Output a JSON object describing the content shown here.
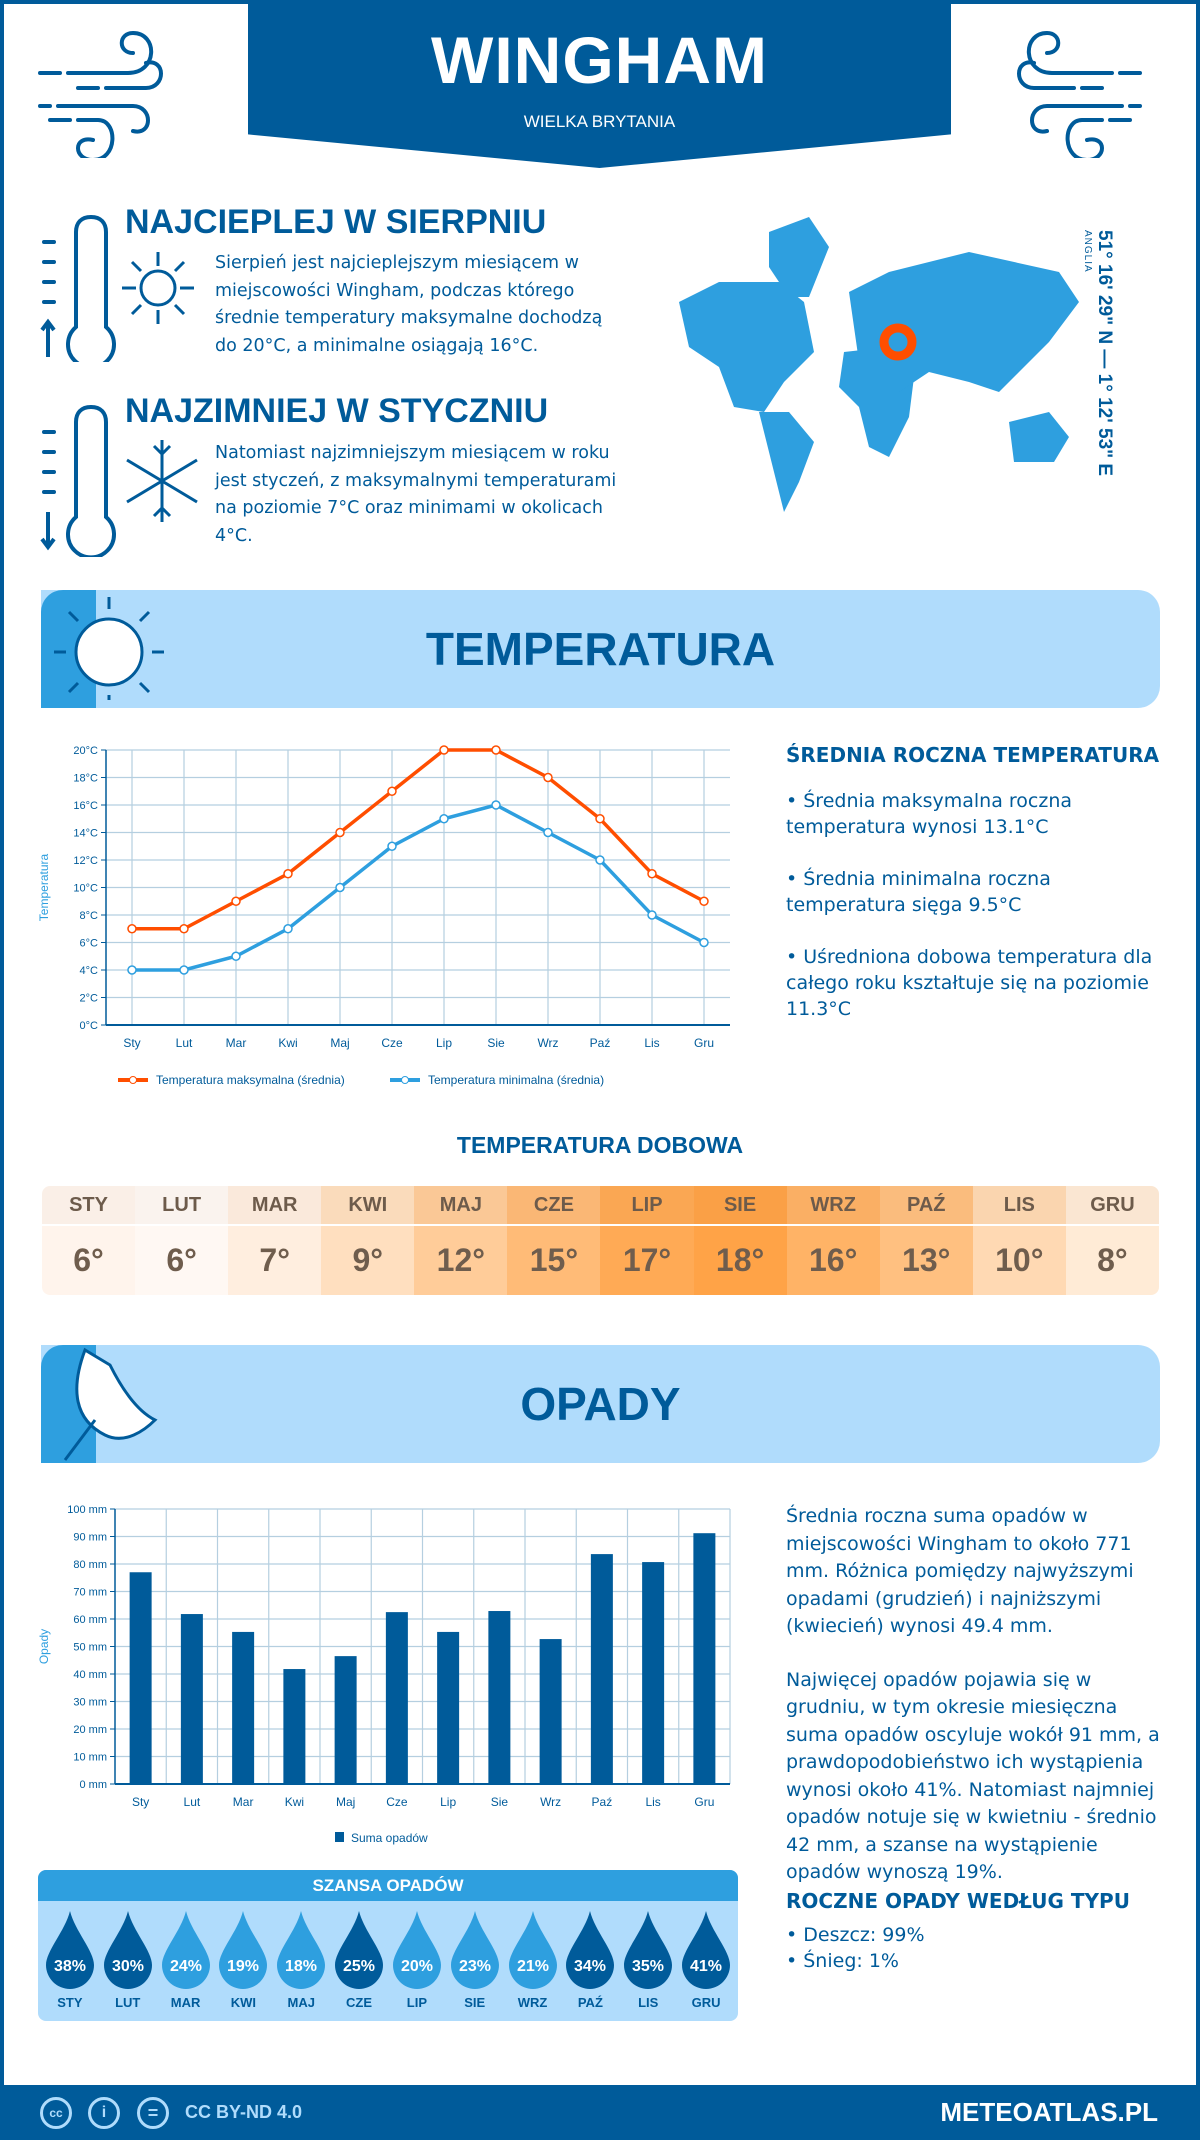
{
  "header": {
    "title": "WINGHAM",
    "subtitle": "WIELKA BRYTANIA"
  },
  "warmest": {
    "title": "NAJCIEPLEJ W SIERPNIU",
    "text": "Sierpień jest najcieplejszym miesiącem w miejscowości Wingham, podczas którego średnie temperatury maksymalne dochodzą do 20°C, a minimalne osiągają 16°C."
  },
  "coldest": {
    "title": "NAJZIMNIEJ W STYCZNIU",
    "text": "Natomiast najzimniejszym miesiącem w roku jest styczeń, z maksymalnymi temperaturami na poziomie 7°C oraz minimami w okolicach 4°C."
  },
  "location": {
    "coordinates": "51° 16' 29\" N — 1° 12' 53\" E",
    "region": "ANGLIA",
    "marker_color": "#ff4e00"
  },
  "temperature_section": {
    "title": "TEMPERATURA"
  },
  "temp_stats": {
    "title": "ŚREDNIA ROCZNA TEMPERATURA",
    "items": [
      "• Średnia maksymalna roczna temperatura wynosi 13.1°C",
      "• Średnia minimalna roczna temperatura sięga 9.5°C",
      "• Uśredniona dobowa temperatura dla całego roku kształtuje się na poziomie 11.3°C"
    ]
  },
  "daily": {
    "title": "TEMPERATURA DOBOWA",
    "months": [
      "STY",
      "LUT",
      "MAR",
      "KWI",
      "MAJ",
      "CZE",
      "LIP",
      "SIE",
      "WRZ",
      "PAŹ",
      "LIS",
      "GRU"
    ],
    "values": [
      "6°",
      "6°",
      "7°",
      "9°",
      "12°",
      "15°",
      "17°",
      "18°",
      "16°",
      "13°",
      "10°",
      "8°"
    ],
    "colors": [
      "#fff4ec",
      "#fff8f3",
      "#ffeedf",
      "#ffdfbf",
      "#ffcc99",
      "#ffbb77",
      "#ffaa55",
      "#ffa347",
      "#ffb366",
      "#ffc080",
      "#ffd9b3",
      "#ffebd6"
    ]
  },
  "precip_section": {
    "title": "OPADY"
  },
  "precip_text": [
    "Średnia roczna suma opadów w miejscowości Wingham to około 771 mm. Różnica pomiędzy najwyższymi opadami (grudzień) i najniższymi (kwiecień) wynosi 49.4 mm.",
    "Najwięcej opadów pojawia się w grudniu, w tym okresie miesięczna suma opadów oscyluje wokół 91 mm, a prawdopodobieństwo ich wystąpienia wynosi około 41%. Natomiast najmniej opadów notuje się w kwietniu - średnio 42 mm, a szanse na wystąpienie opadów wynoszą 19%."
  ],
  "chance": {
    "title": "SZANSA OPADÓW",
    "months": [
      "STY",
      "LUT",
      "MAR",
      "KWI",
      "MAJ",
      "CZE",
      "LIP",
      "SIE",
      "WRZ",
      "PAŹ",
      "LIS",
      "GRU"
    ],
    "values": [
      "38%",
      "30%",
      "24%",
      "19%",
      "18%",
      "25%",
      "20%",
      "23%",
      "21%",
      "34%",
      "35%",
      "41%"
    ],
    "dark_color": "#005b9a",
    "light_color": "#2e9fdf"
  },
  "types": {
    "title": "ROCZNE OPADY WEDŁUG TYPU",
    "items": [
      "• Deszcz: 99%",
      "• Śnieg: 1%"
    ]
  },
  "footer": {
    "license": "CC BY-ND 4.0",
    "brand": "METEOATLAS.PL",
    "cc_icon": "cc",
    "by_icon": "i",
    "nd_icon": "="
  },
  "chart_data": [
    {
      "type": "line",
      "categories": [
        "Sty",
        "Lut",
        "Mar",
        "Kwi",
        "Maj",
        "Cze",
        "Lip",
        "Sie",
        "Wrz",
        "Paź",
        "Lis",
        "Gru"
      ],
      "ylabel": "Temperatura",
      "ylim": [
        0,
        20
      ],
      "yticks": [
        "0°C",
        "2°C",
        "4°C",
        "6°C",
        "8°C",
        "10°C",
        "12°C",
        "14°C",
        "16°C",
        "18°C",
        "20°C"
      ],
      "grid": true,
      "legend": "bottom",
      "series": [
        {
          "name": "Temperatura maksymalna (średnia)",
          "color": "#ff4e00",
          "values": [
            7,
            7,
            9,
            11,
            14,
            17,
            20,
            20,
            18,
            15,
            11,
            9
          ]
        },
        {
          "name": "Temperatura minimalna (średnia)",
          "color": "#2e9fdf",
          "values": [
            4,
            4,
            5,
            7,
            10,
            13,
            15,
            16,
            14,
            12,
            8,
            6
          ]
        }
      ]
    },
    {
      "type": "bar",
      "categories": [
        "Sty",
        "Lut",
        "Mar",
        "Kwi",
        "Maj",
        "Cze",
        "Lip",
        "Sie",
        "Wrz",
        "Paź",
        "Lis",
        "Gru"
      ],
      "ylabel": "Opady",
      "ylim": [
        0,
        100
      ],
      "yticks": [
        "0 mm",
        "10 mm",
        "20 mm",
        "30 mm",
        "40 mm",
        "50 mm",
        "60 mm",
        "70 mm",
        "80 mm",
        "90 mm",
        "100 mm"
      ],
      "grid": true,
      "legend": "bottom",
      "series": [
        {
          "name": "Suma opadów",
          "color": "#005b9a",
          "values": [
            77,
            61.8,
            55.3,
            41.8,
            46.5,
            62.5,
            55.3,
            62.9,
            52.7,
            83.6,
            80.7,
            91.2
          ]
        }
      ]
    }
  ]
}
